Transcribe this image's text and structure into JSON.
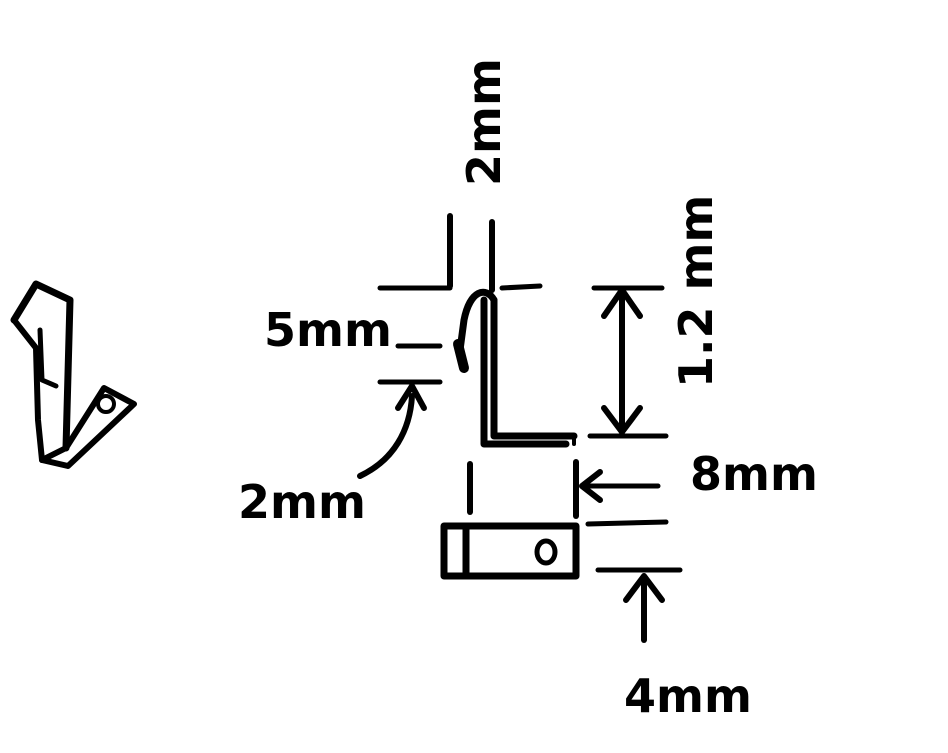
{
  "labels": {
    "top_thickness": "2mm",
    "hook_length": "5mm",
    "hook_gap": "2mm",
    "height": "1.2 mm",
    "base_length": "8mm",
    "bottom_width": "4mm",
    "hole_mark": "o"
  },
  "colors": {
    "ink": "#000000",
    "background": "#ffffff"
  }
}
